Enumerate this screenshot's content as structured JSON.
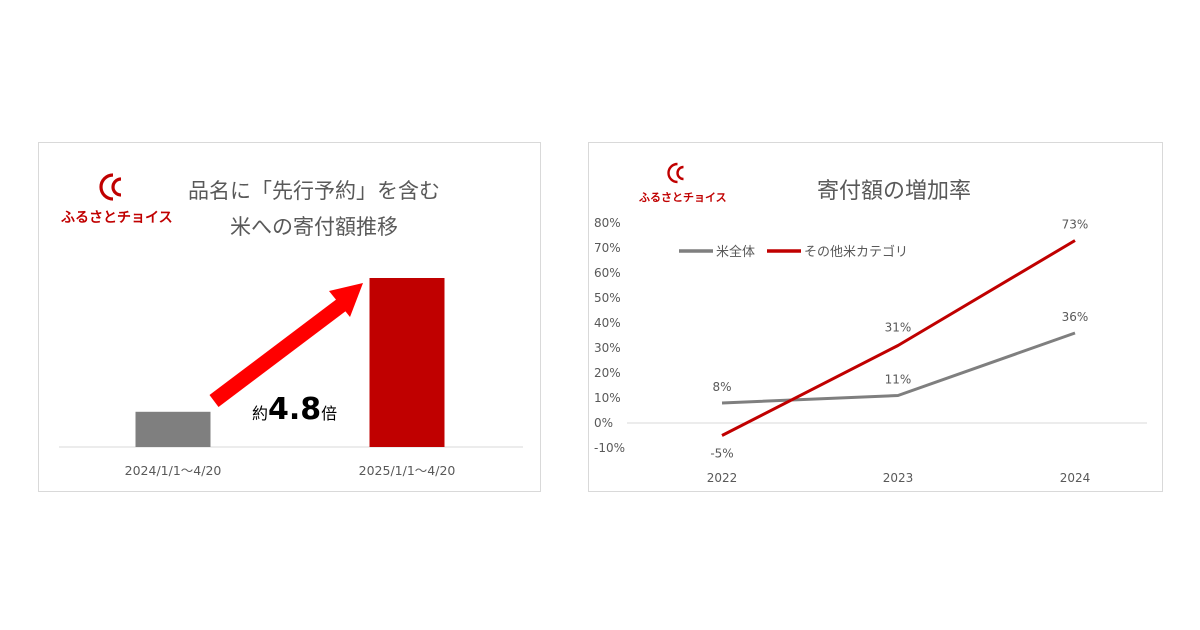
{
  "brand": {
    "name": "ふるさとチョイス",
    "color": "#c00000"
  },
  "colors": {
    "gray": "#7f7f7f",
    "red": "#c00000",
    "arrow": "#ff0000"
  },
  "left_chart": {
    "title_line1": "品名に「先行予約」を含む",
    "title_line2": "米への寄付額推移",
    "callout_prefix": "約",
    "callout_value": "4.8",
    "callout_suffix": "倍"
  },
  "right_chart": {
    "title": "寄付額の増加率"
  },
  "chart_data": [
    {
      "type": "bar",
      "title": "品名に「先行予約」を含む 米への寄付額推移",
      "categories": [
        "2024/1/1～4/20",
        "2025/1/1～4/20"
      ],
      "values": [
        1,
        4.8
      ],
      "colors": [
        "#7f7f7f",
        "#c00000"
      ],
      "annotation": "約4.8倍",
      "grid": false
    },
    {
      "type": "line",
      "title": "寄付額の増加率",
      "x": [
        "2022",
        "2023",
        "2024"
      ],
      "y_ticks": [
        "80%",
        "70%",
        "60%",
        "50%",
        "40%",
        "30%",
        "20%",
        "10%",
        "0%",
        "-10%"
      ],
      "ylim": [
        -10,
        80
      ],
      "legend_position": "top-left",
      "grid": false,
      "series": [
        {
          "name": "米全体",
          "values": [
            8,
            11,
            36
          ],
          "labels": [
            "8%",
            "11%",
            "36%"
          ],
          "color": "#7f7f7f"
        },
        {
          "name": "その他米カテゴリ",
          "values": [
            -5,
            31,
            73
          ],
          "labels": [
            "-5%",
            "31%",
            "73%"
          ],
          "color": "#c00000"
        }
      ]
    }
  ]
}
